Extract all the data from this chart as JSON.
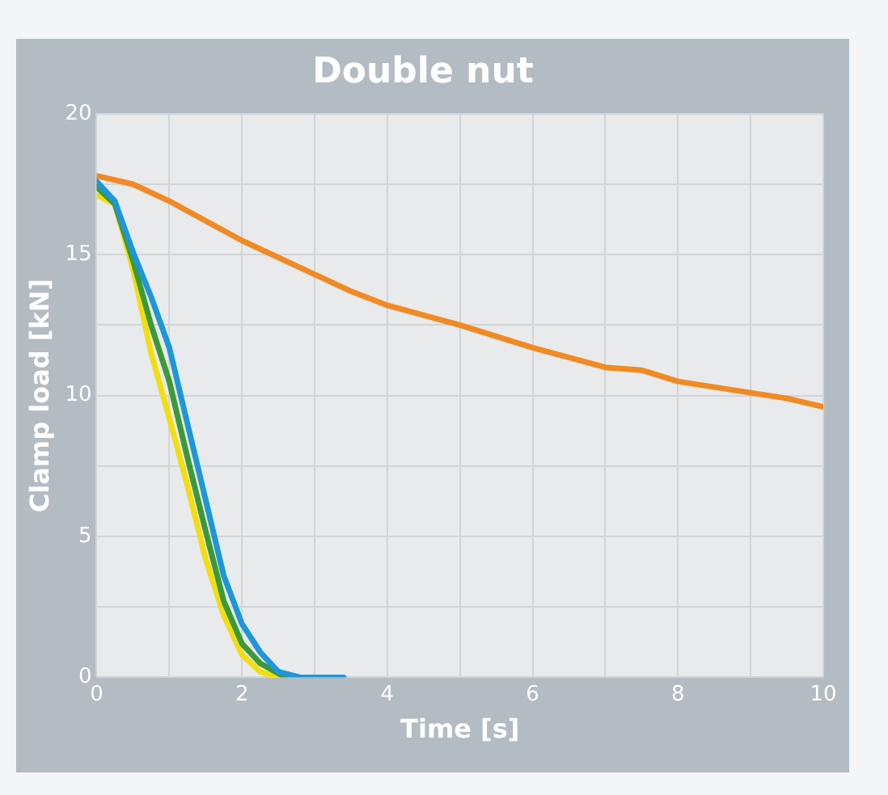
{
  "chart_data": {
    "type": "line",
    "title": "Double nut",
    "xlabel": "Time [s]",
    "ylabel": "Clamp load [kN]",
    "xlim": [
      0,
      10
    ],
    "ylim": [
      0,
      20
    ],
    "xticks": [
      0,
      {
        "value": 1,
        "label": null
      },
      2,
      {
        "value": 3,
        "label": null
      },
      4,
      {
        "value": 5,
        "label": null
      },
      6,
      {
        "value": 7,
        "label": null
      },
      8,
      {
        "value": 9,
        "label": null
      },
      10
    ],
    "yticks": [
      0,
      {
        "value": 2.5,
        "label": null
      },
      5,
      {
        "value": 7.5,
        "label": null
      },
      10,
      {
        "value": 12.5,
        "label": null
      },
      15,
      {
        "value": 17.5,
        "label": null
      },
      20
    ],
    "grid": true,
    "legend": false,
    "marker": "none",
    "line_style": "solid",
    "series": [
      {
        "color": "#f08a24",
        "x": [
          0,
          0.5,
          1,
          2,
          3,
          3.5,
          4,
          5,
          6,
          7,
          7.5,
          8,
          9,
          9.5,
          10
        ],
        "values": [
          17.8,
          17.5,
          16.9,
          15.5,
          14.3,
          13.7,
          13.2,
          12.5,
          11.7,
          11.0,
          10.9,
          10.5,
          10.1,
          9.9,
          9.6
        ]
      },
      {
        "color": "#1e96d8",
        "x": [
          0,
          0.25,
          0.5,
          0.75,
          1,
          1.25,
          1.5,
          1.75,
          2,
          2.25,
          2.5,
          2.8,
          3.4
        ],
        "values": [
          17.6,
          16.9,
          15.1,
          13.5,
          11.7,
          9.0,
          6.3,
          3.6,
          1.9,
          0.9,
          0.2,
          0,
          0
        ]
      },
      {
        "color": "#3a9a3a",
        "x": [
          0,
          0.25,
          0.5,
          0.75,
          1,
          1.25,
          1.5,
          1.75,
          2,
          2.25,
          2.6
        ],
        "values": [
          17.4,
          16.8,
          14.8,
          12.5,
          10.5,
          7.8,
          5.2,
          2.7,
          1.2,
          0.5,
          0
        ]
      },
      {
        "color": "#f2de10",
        "x": [
          0,
          0.25,
          0.5,
          0.75,
          1,
          1.25,
          1.5,
          1.75,
          2,
          2.25,
          2.5
        ],
        "values": [
          17.1,
          16.8,
          14.5,
          11.5,
          9.2,
          6.8,
          4.2,
          2.2,
          0.8,
          0.2,
          0
        ]
      }
    ]
  }
}
